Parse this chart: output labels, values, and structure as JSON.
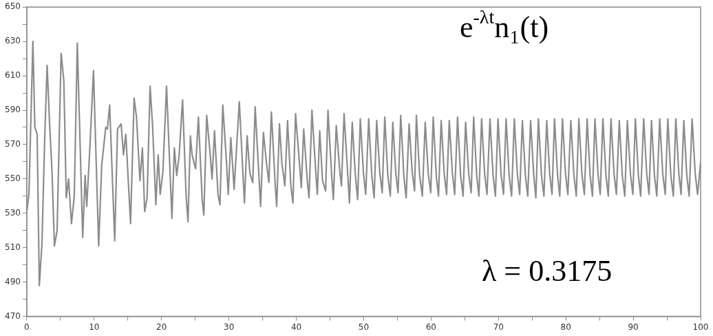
{
  "chart_data": {
    "type": "line",
    "annotations": [
      "e$^{-λt}$n₁(t)",
      "λ = 0.3175"
    ],
    "xlim": [
      0,
      100
    ],
    "xticks": [
      0,
      {
        "value": 5,
        "label": null
      },
      10,
      {
        "value": 15,
        "label": null
      },
      20,
      {
        "value": 25,
        "label": null
      },
      30,
      {
        "value": 35,
        "label": null
      },
      40,
      {
        "value": 45,
        "label": null
      },
      50,
      {
        "value": 55,
        "label": null
      },
      60,
      {
        "value": 65,
        "label": null
      },
      70,
      {
        "value": 75,
        "label": null
      },
      80,
      {
        "value": 85,
        "label": null
      },
      90,
      {
        "value": 95,
        "label": null
      },
      100
    ],
    "ylim": [
      470,
      650
    ],
    "yticks": [
      470,
      {
        "value": 480,
        "label": null
      },
      490,
      {
        "value": 500,
        "label": null
      },
      510,
      {
        "value": 520,
        "label": null
      },
      530,
      {
        "value": 540,
        "label": null
      },
      550,
      {
        "value": 560,
        "label": null
      },
      570,
      {
        "value": 580,
        "label": null
      },
      590,
      {
        "value": 600,
        "label": null
      },
      610,
      {
        "value": 620,
        "label": null
      },
      630,
      {
        "value": 640,
        "label": null
      },
      650
    ],
    "grid": false,
    "marker": "none",
    "line_style": "solid",
    "series": [
      {
        "color": "#8c8c8c",
        "x": [
          0,
          0.32,
          0.91,
          1.2,
          1.54,
          1.86,
          2.25,
          2.67,
          3.02,
          3.4,
          3.75,
          4.1,
          4.5,
          5.1,
          5.5,
          5.86,
          6.2,
          6.63,
          7.05,
          7.5,
          8.3,
          8.66,
          8.9,
          9.36,
          9.9,
          10.67,
          11.12,
          11.72,
          11.96,
          12.3,
          13.05,
          13.47,
          14,
          14.35,
          14.7,
          15.4,
          15.93,
          16.28,
          16.8,
          17.16,
          17.5,
          17.86,
          18.3,
          18.67,
          19.16,
          19.5,
          19.8,
          20.2,
          20.74,
          21.54,
          21.9,
          22.25,
          22.6,
          23.12,
          23.65,
          23.93,
          24.28,
          24.53,
          25.05,
          25.47,
          26.03,
          26.28,
          26.7,
          27.16,
          27.5,
          27.86,
          28.38,
          28.67,
          29.09,
          29.6,
          29.9,
          30.28,
          30.77,
          31.54,
          32.3,
          32.7,
          33.12,
          33.54,
          33.89,
          34.7,
          35.12,
          35.58,
          35.93,
          36.3,
          36.88,
          37.09,
          37.5,
          37.86,
          38.3,
          38.7,
          39.19,
          39.5,
          39.89,
          40.49,
          40.74,
          41.1,
          41.65,
          41.89,
          42.32,
          42.84,
          43.12,
          43.47,
          43.89,
          44.35,
          44.7,
          45.23,
          45.5,
          45.93,
          46.47,
          46.7,
          47.09,
          47.89,
          48.3,
          48.75,
          49.1,
          49.5,
          49.95,
          50.3,
          50.74,
          51.2,
          51.55,
          51.93,
          52.38,
          52.75,
          53.13,
          53.58,
          53.95,
          54.32,
          54.77,
          55.1,
          55.5,
          55.95,
          56.3,
          56.74,
          57.2,
          57.55,
          57.82,
          58.3,
          58.7,
          59.13,
          59.58,
          59.95,
          60.32,
          60.77,
          61.1,
          61.5,
          61.95,
          62.3,
          62.7,
          63.15,
          63.5,
          63.93,
          64.38,
          64.75,
          65.13,
          65.58,
          65.95,
          66.32,
          66.77,
          67.1,
          67.5,
          67.95,
          68.3,
          68.74,
          69.2,
          69.55,
          69.93,
          70.38,
          70.75,
          71.13,
          71.58,
          71.95,
          72.35,
          72.8,
          73.15,
          73.55,
          74,
          74.35,
          74.77,
          75.22,
          75.55,
          75.93,
          76.38,
          76.75,
          77.16,
          77.6,
          77.95,
          78.32,
          78.77,
          79.1,
          79.5,
          79.95,
          80.3,
          80.74,
          81.2,
          81.55,
          81.93,
          82.38,
          82.75,
          83.16,
          83.6,
          83.95,
          84.32,
          84.77,
          85.1,
          85.5,
          85.95,
          86.3,
          86.7,
          87.15,
          87.5,
          87.93,
          88.38,
          88.75,
          89.13,
          89.58,
          89.95,
          90.32,
          90.77,
          91.1,
          91.55,
          92,
          92.35,
          92.71,
          93.15,
          93.5,
          93.93,
          94.38,
          94.75,
          95.13,
          95.58,
          95.95,
          96.32,
          96.77,
          97.1,
          97.51,
          97.95,
          98.3,
          98.74,
          99.2,
          99.55,
          100
        ],
        "values": [
          531,
          541,
          630,
          580,
          576,
          488,
          512,
          575,
          616,
          581,
          554,
          511,
          520,
          623,
          607,
          539,
          550,
          524,
          540,
          629,
          516,
          552,
          534,
          568,
          613,
          511,
          558,
          580,
          579,
          593,
          514,
          579,
          582,
          564,
          576,
          524,
          597,
          586,
          549,
          568,
          531,
          539,
          604,
          581,
          535,
          564,
          541,
          554,
          604,
          527,
          568,
          552,
          563,
          596,
          540,
          525,
          575,
          564,
          556,
          586,
          538,
          529,
          587,
          567,
          550,
          578,
          541,
          535,
          593,
          562,
          541,
          574,
          544,
          595,
          536,
          575,
          553,
          548,
          592,
          534,
          577,
          559,
          548,
          589,
          546,
          534,
          582,
          559,
          546,
          584,
          546,
          536,
          588,
          558,
          545,
          579,
          548,
          539,
          590,
          557,
          541,
          578,
          549,
          543,
          590,
          553,
          538,
          581,
          554,
          546,
          588,
          536,
          583,
          553,
          538,
          585,
          554,
          541,
          585,
          552,
          539,
          584,
          554,
          542,
          586,
          552,
          540,
          583,
          553,
          542,
          587,
          552,
          539,
          582,
          554,
          543,
          587,
          552,
          540,
          583,
          553,
          542,
          586,
          552,
          540,
          584,
          553,
          541,
          584,
          554,
          541,
          586,
          552,
          540,
          583,
          553,
          542,
          586,
          552,
          540,
          585,
          553,
          541,
          585,
          552,
          540,
          585,
          553,
          541,
          585,
          552,
          540,
          585,
          553,
          541,
          584,
          552,
          540,
          584,
          553,
          539,
          585,
          552,
          540,
          584,
          553,
          541,
          585,
          552,
          540,
          585,
          553,
          541,
          584,
          552,
          540,
          585,
          553,
          541,
          585,
          552,
          540,
          585,
          553,
          541,
          585,
          552,
          540,
          585,
          553,
          541,
          584,
          552,
          540,
          584,
          553,
          541,
          585,
          552,
          540,
          585,
          553,
          541,
          584,
          552,
          540,
          585,
          553,
          541,
          585,
          552,
          540,
          585,
          553,
          541,
          584,
          552,
          540,
          585,
          553,
          541,
          560
        ]
      }
    ]
  }
}
